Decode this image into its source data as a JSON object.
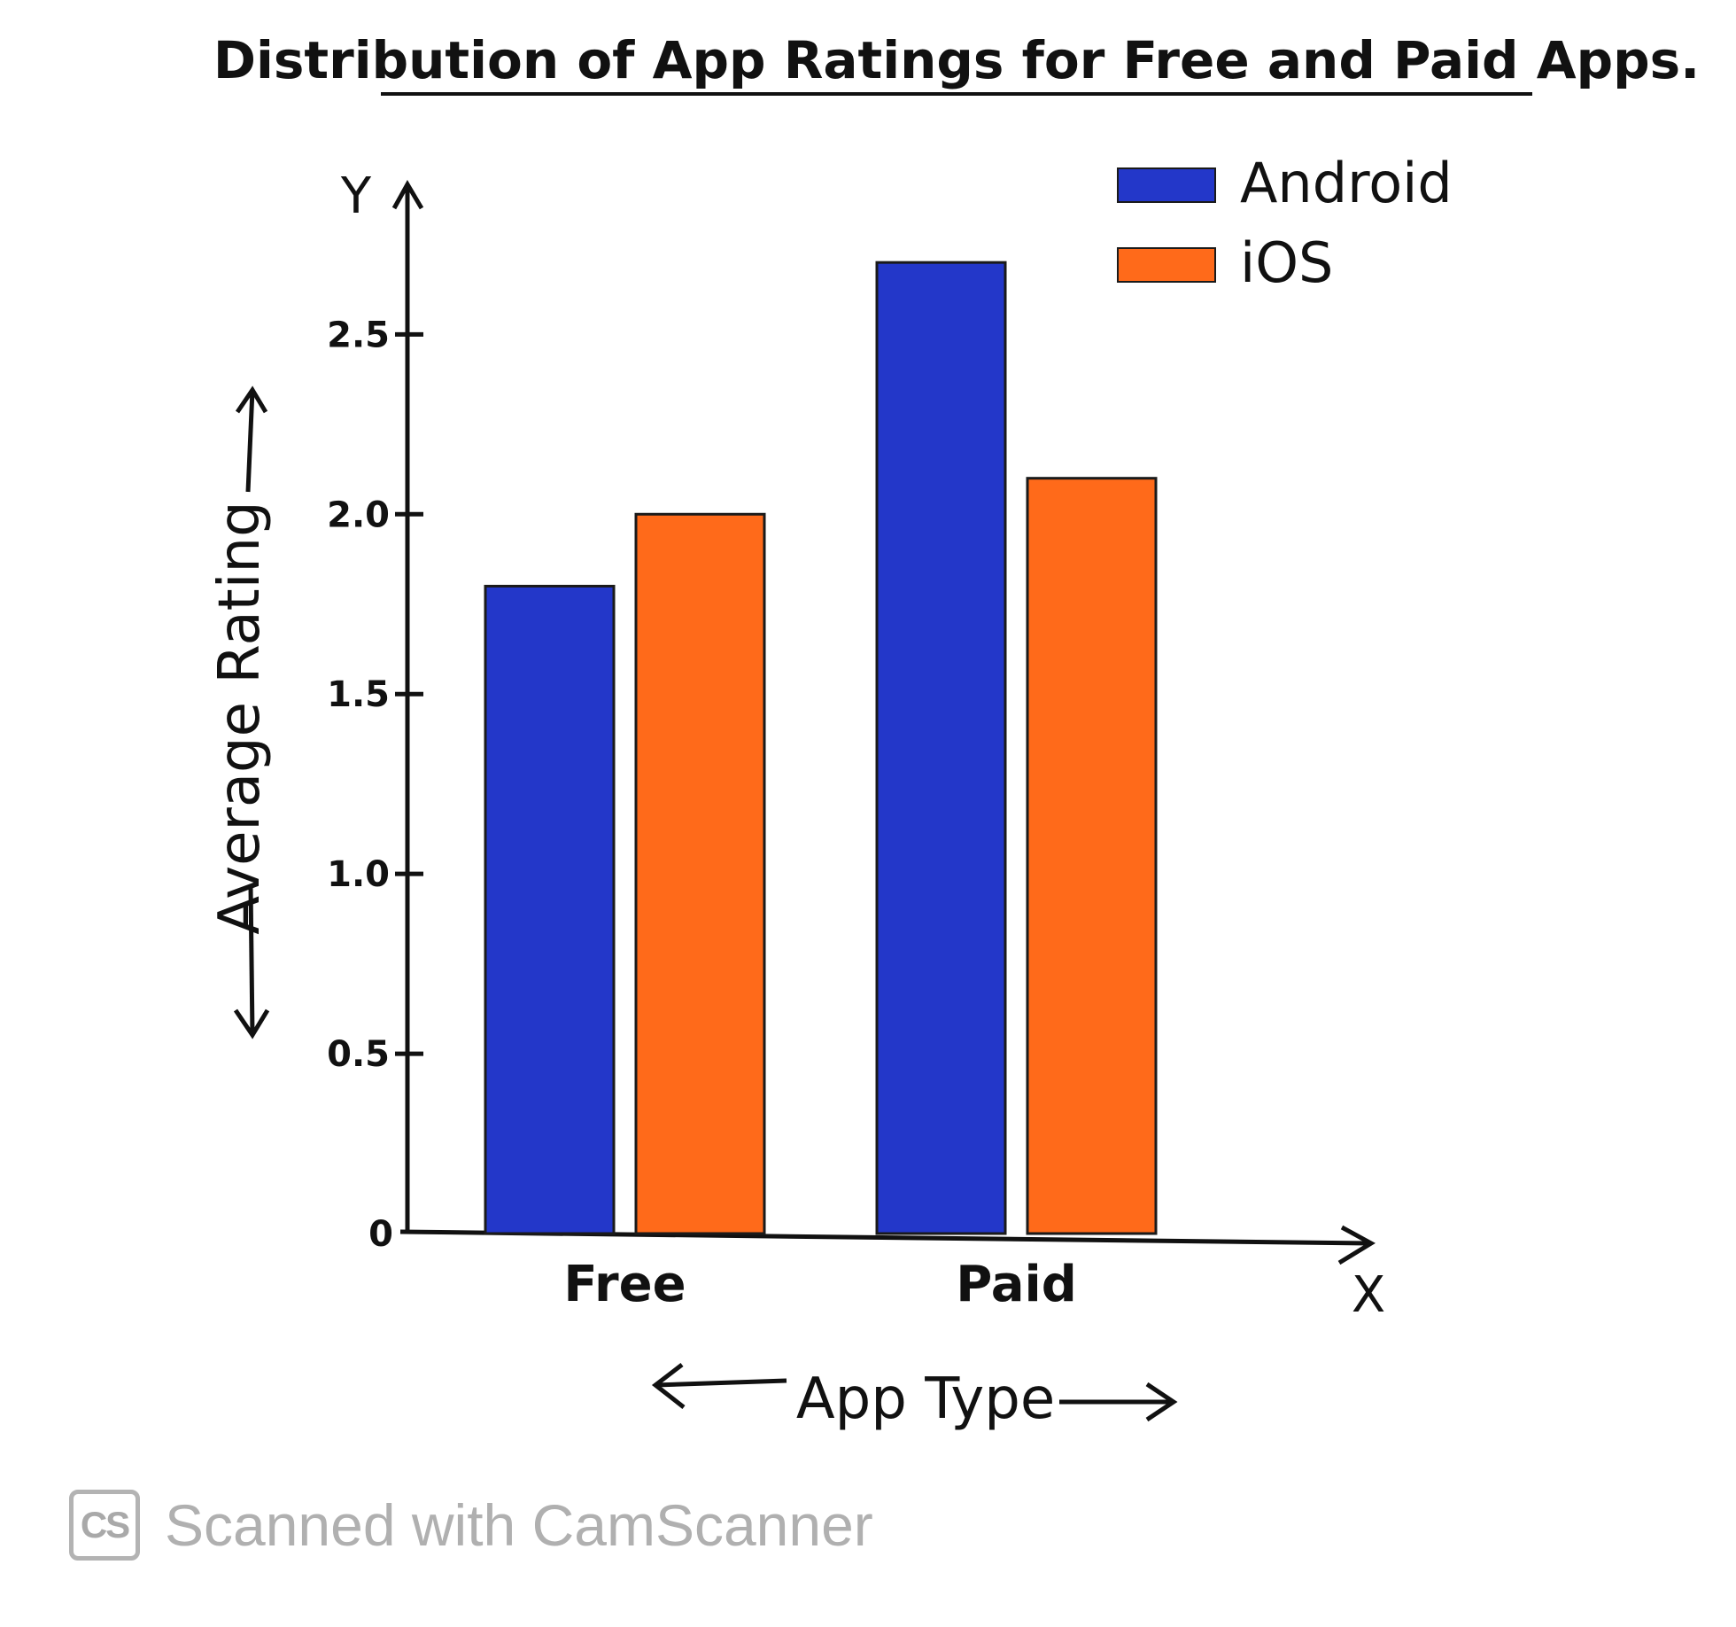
{
  "chart_data": {
    "type": "bar",
    "title": "Distribution of App Ratings for Free and Paid Apps.",
    "xlabel": "App Type",
    "ylabel": "Average Rating",
    "x_axis_letter": "X",
    "y_axis_letter": "Y",
    "categories": [
      "Free",
      "Paid"
    ],
    "series": [
      {
        "name": "Android",
        "color": "#2337c9",
        "values": [
          1.8,
          2.7
        ]
      },
      {
        "name": "iOS",
        "color": "#ff6a1a",
        "values": [
          2.0,
          2.1
        ]
      }
    ],
    "yticks": [
      {
        "value": 0,
        "label": "0"
      },
      {
        "value": 0.5,
        "label": "0.5"
      },
      {
        "value": 1.0,
        "label": "1.0"
      },
      {
        "value": 1.5,
        "label": "1.5"
      },
      {
        "value": 2.0,
        "label": "2.0"
      },
      {
        "value": 2.5,
        "label": "2.5"
      }
    ],
    "ylim": [
      0,
      2.9
    ],
    "legend_position": "top-right",
    "grid": false
  },
  "watermark": {
    "logo_text": "CS",
    "text": "Scanned with CamScanner"
  }
}
